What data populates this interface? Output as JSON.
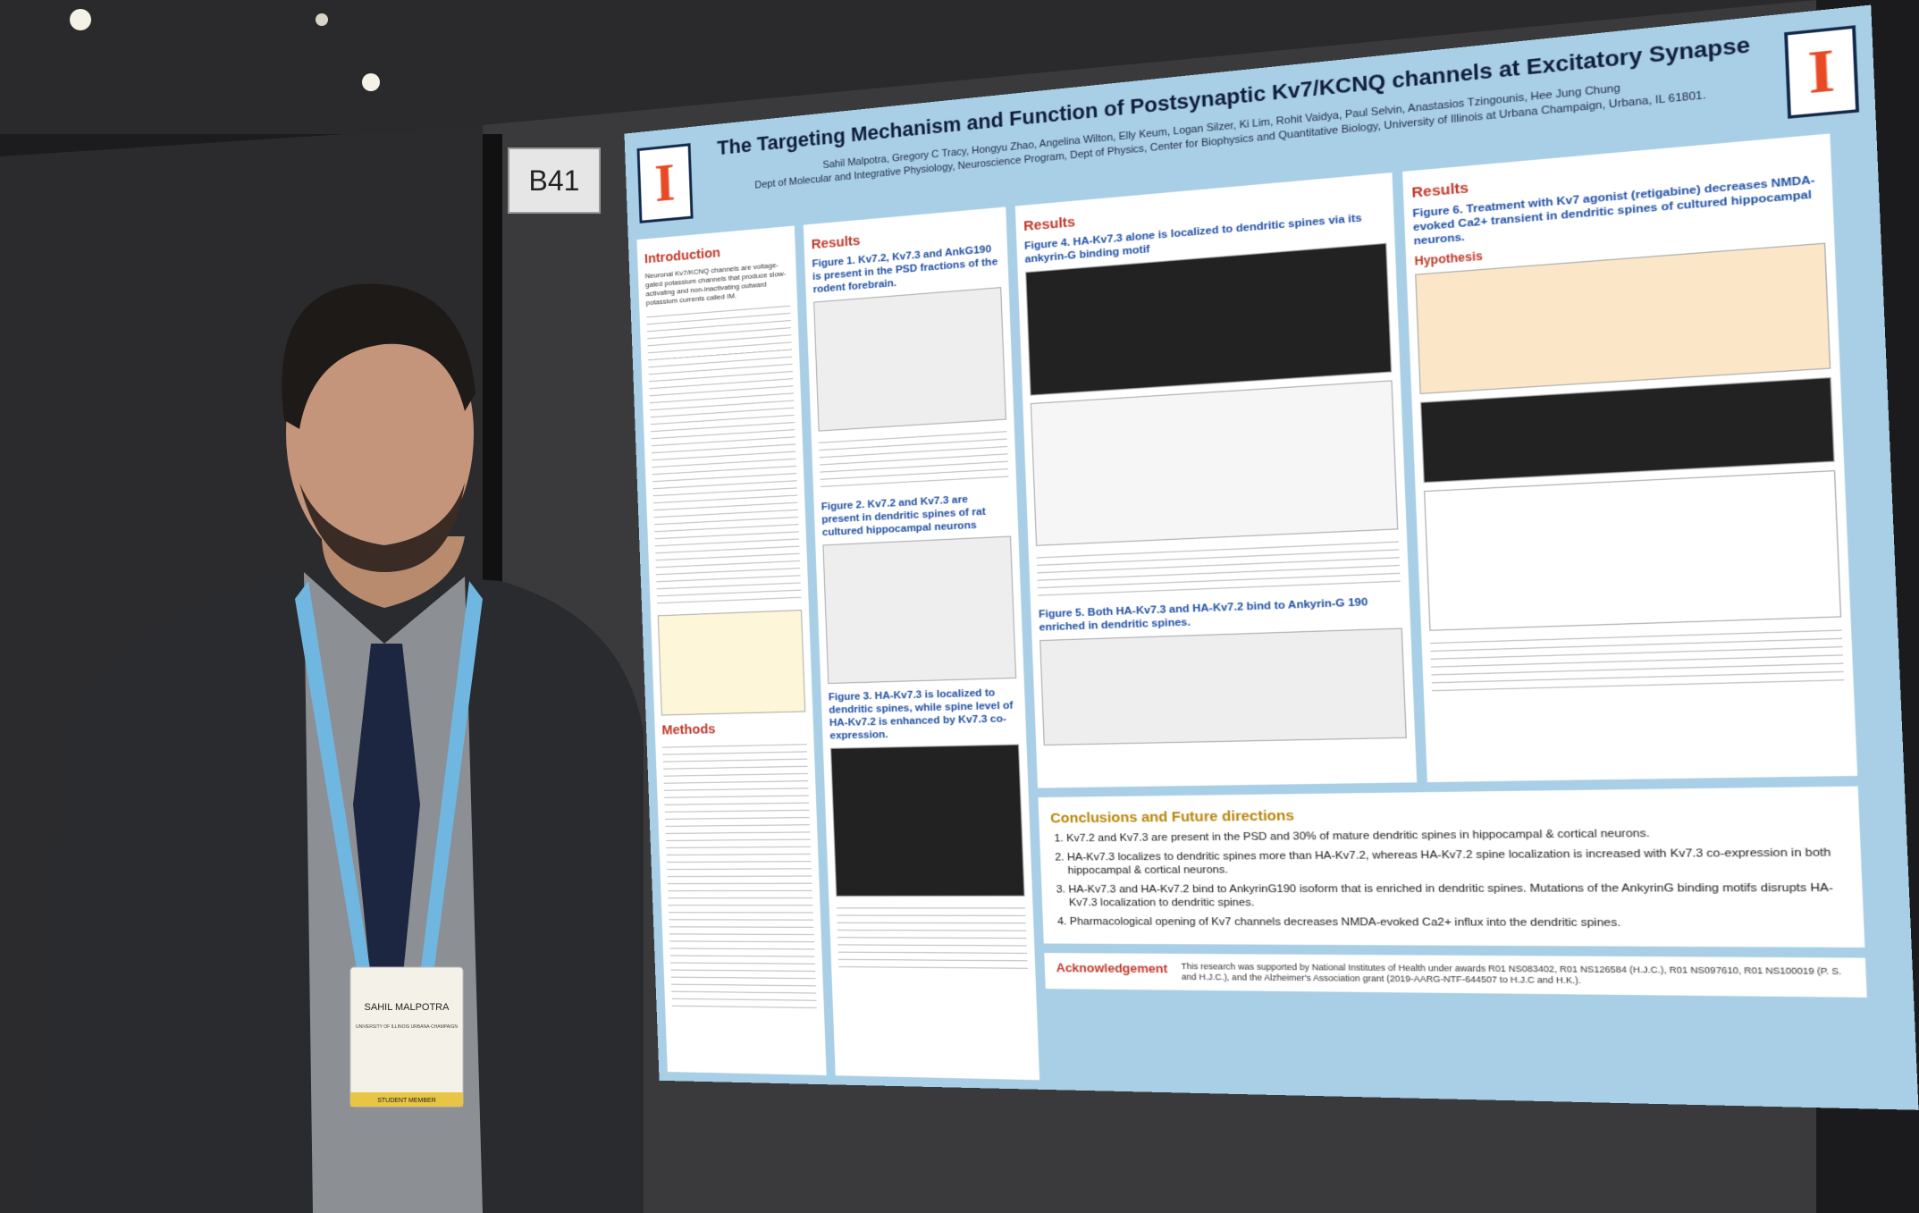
{
  "board_label": "B41",
  "poster": {
    "title": "The Targeting Mechanism and Function of Postsynaptic Kv7/KCNQ channels at Excitatory Synapse",
    "authors": "Sahil Malpotra, Gregory C Tracy, Hongyu Zhao, Angelina Wilton, Elly Keum, Logan Silzer, Ki Lim, Rohit Vaidya, Paul Selvin, Anastasios Tzingounis, Hee Jung Chung",
    "affiliations": "Dept of Molecular and Integrative Physiology, Neuroscience Program, Dept of Physics, Center for Biophysics and Quantitative Biology, University of Illinois at Urbana Champaign, Urbana, IL 61801.",
    "introduction": {
      "heading": "Introduction",
      "text": "Neuronal Kv7/KCNQ channels are voltage-gated potassium channels that produce slow-activating and non-inactivating outward potassium currents called IM."
    },
    "methods_heading": "Methods",
    "results_heading": "Results",
    "figures": [
      "Figure 1. Kv7.2, Kv7.3 and AnkG190 is present in the PSD fractions of the rodent forebrain.",
      "Figure 2. Kv7.2 and Kv7.3 are present in dendritic spines of rat cultured hippocampal neurons",
      "Figure 3. HA-Kv7.3 is localized to dendritic spines, while spine level of HA-Kv7.2 is enhanced by Kv7.3 co-expression.",
      "Figure 4. HA-Kv7.3 alone is localized to dendritic spines via its ankyrin-G binding motif",
      "Figure 5. Both HA-Kv7.3 and HA-Kv7.2 bind to Ankyrin-G 190 enriched in dendritic spines.",
      "Figure 6. Treatment with Kv7 agonist (retigabine) decreases NMDA-evoked Ca2+ transient in dendritic spines of cultured hippocampal neurons."
    ],
    "hypothesis_heading": "Hypothesis",
    "conclusions": {
      "heading": "Conclusions and Future directions",
      "items": [
        "Kv7.2 and Kv7.3 are present in the PSD and 30% of mature dendritic spines in hippocampal & cortical neurons.",
        "HA-Kv7.3 localizes to dendritic spines more than HA-Kv7.2, whereas HA-Kv7.2 spine localization is increased with Kv7.3 co-expression in both hippocampal & cortical neurons.",
        "HA-Kv7.3 and HA-Kv7.2 bind to AnkyrinG190 isoform that is enriched in dendritic spines. Mutations of the AnkyrinG binding motifs disrupts HA-Kv7.3 localization to dendritic spines.",
        "Pharmacological opening of Kv7 channels decreases NMDA-evoked Ca2+ influx into the dendritic spines."
      ]
    },
    "acknowledgement": {
      "heading": "Acknowledgement",
      "text": "This research was supported by National Institutes of Health under awards R01 NS083402, R01 NS126584 (H.J.C.), R01 NS097610, R01 NS100019 (P. S. and H.J.C.), and the Alzheimer's Association grant (2019-AARG-NTF-644507 to H.J.C and H.K.)."
    }
  },
  "badge": {
    "name": "SAHIL MALPOTRA",
    "affiliation": "UNIVERSITY OF ILLINOIS URBANA-CHAMPAIGN",
    "role": "STUDENT MEMBER"
  }
}
